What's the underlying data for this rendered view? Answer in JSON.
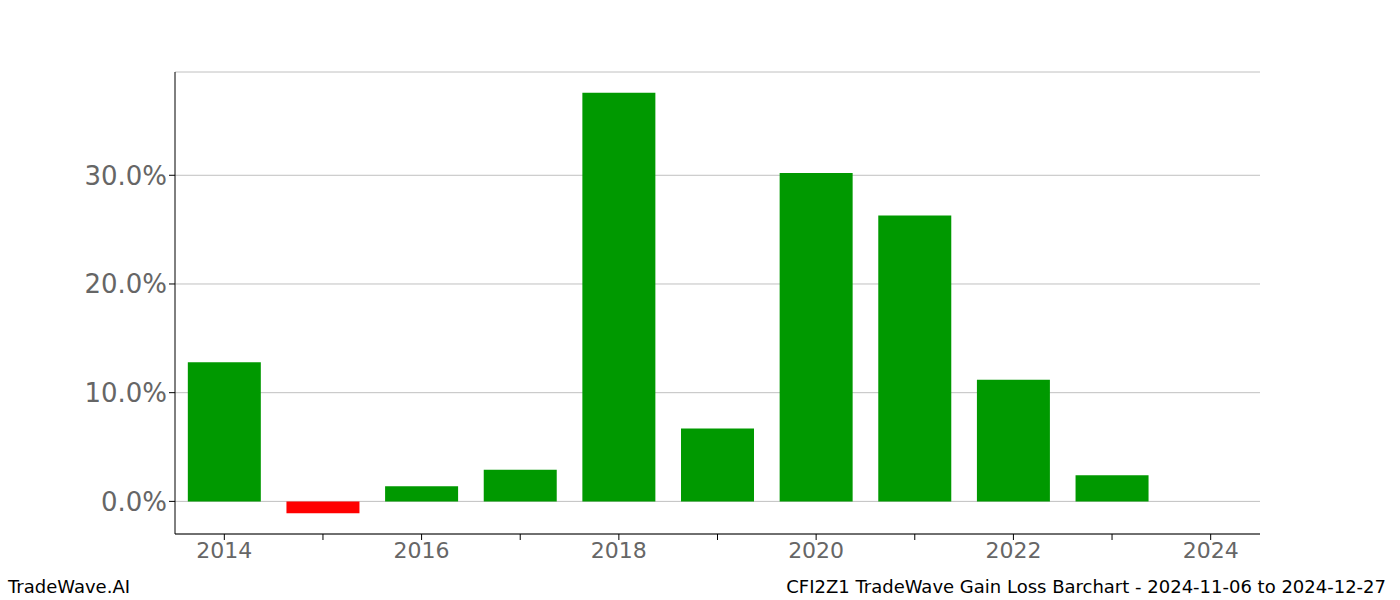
{
  "chart_data": {
    "type": "bar",
    "title": "CFI2Z1 TradeWave Gain Loss Barchart - 2024-11-06 to 2024-12-27",
    "annotations": [
      "TradeWave.AI"
    ],
    "categories": [
      "2014",
      null,
      "2016",
      null,
      "2018",
      null,
      "2020",
      null,
      "2022",
      null,
      "2024"
    ],
    "values": [
      12.8,
      -1.1,
      1.4,
      2.9,
      37.6,
      6.7,
      30.2,
      26.3,
      11.2,
      2.4,
      null
    ],
    "colors": [
      "#009900",
      "#ff0000",
      "#009900",
      "#009900",
      "#009900",
      "#009900",
      "#009900",
      "#009900",
      "#009900",
      "#009900",
      "#009900"
    ],
    "ylim": [
      -3,
      39.5
    ],
    "yticks": [
      {
        "value": 0,
        "label": "0.0%"
      },
      {
        "value": 10,
        "label": "10.0%"
      },
      {
        "value": 20,
        "label": "20.0%"
      },
      {
        "value": 30,
        "label": "30.0%"
      }
    ],
    "grid": true
  }
}
